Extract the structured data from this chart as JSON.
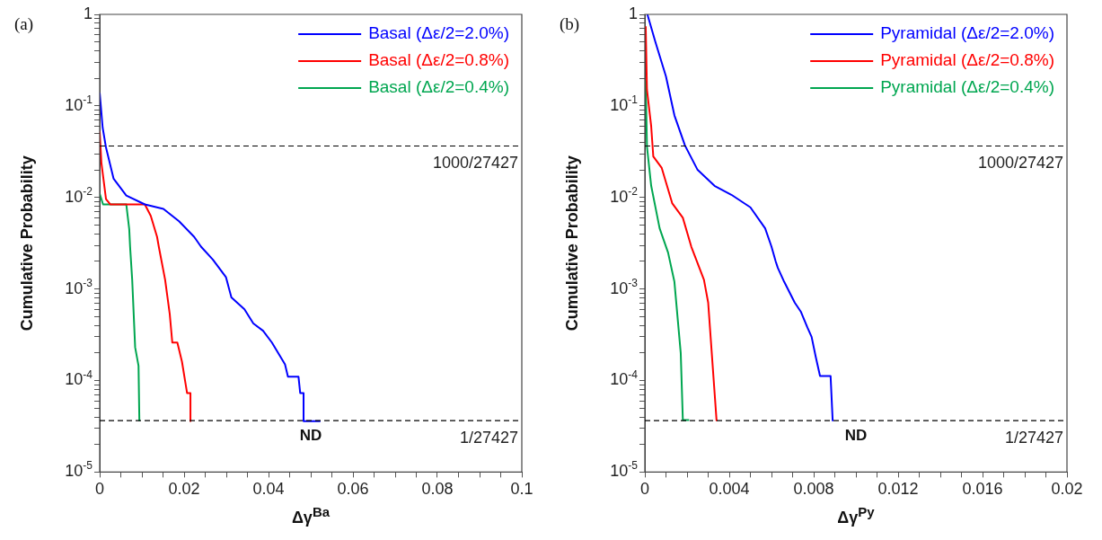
{
  "chart_data": [
    {
      "type": "line",
      "title": "(a)",
      "xlabel": "Δγ$^{Ba}$",
      "ylabel": "Cumulative Probability",
      "log": "y",
      "grid": false,
      "legend": "top right",
      "marker": "none",
      "line_style": "solid",
      "xlim": [
        0,
        0.1
      ],
      "ylim": [
        1e-05,
        1
      ],
      "xticks": [
        0,
        {
          "value": 0.005,
          "label": null
        },
        {
          "value": 0.01,
          "label": null
        },
        {
          "value": 0.015,
          "label": null
        },
        0.02,
        {
          "value": 0.025,
          "label": null
        },
        {
          "value": 0.03,
          "label": null
        },
        {
          "value": 0.035,
          "label": null
        },
        0.04,
        {
          "value": 0.045,
          "label": null
        },
        {
          "value": 0.05,
          "label": null
        },
        {
          "value": 0.055,
          "label": null
        },
        0.06,
        {
          "value": 0.065,
          "label": null
        },
        {
          "value": 0.07,
          "label": null
        },
        {
          "value": 0.075,
          "label": null
        },
        0.08,
        {
          "value": 0.085,
          "label": null
        },
        {
          "value": 0.09,
          "label": null
        },
        {
          "value": 0.095,
          "label": null
        },
        0.1
      ],
      "yticks": [
        {
          "value": 1e-05,
          "label": "10$^{-5}$"
        },
        {
          "value": 2e-05,
          "label": null
        },
        {
          "value": 3e-05,
          "label": null
        },
        {
          "value": 4e-05,
          "label": null
        },
        {
          "value": 5e-05,
          "label": null
        },
        {
          "value": 6e-05,
          "label": null
        },
        {
          "value": 7e-05,
          "label": null
        },
        {
          "value": 8e-05,
          "label": null
        },
        {
          "value": 9e-05,
          "label": null
        },
        {
          "value": 0.0001,
          "label": "10$^{-4}$"
        },
        {
          "value": 0.0002,
          "label": null
        },
        {
          "value": 0.0003,
          "label": null
        },
        {
          "value": 0.0004,
          "label": null
        },
        {
          "value": 0.0005,
          "label": null
        },
        {
          "value": 0.0006,
          "label": null
        },
        {
          "value": 0.0007,
          "label": null
        },
        {
          "value": 0.0008,
          "label": null
        },
        {
          "value": 0.0009,
          "label": null
        },
        {
          "value": 0.001,
          "label": "10$^{-3}$"
        },
        {
          "value": 0.002,
          "label": null
        },
        {
          "value": 0.003,
          "label": null
        },
        {
          "value": 0.004,
          "label": null
        },
        {
          "value": 0.005,
          "label": null
        },
        {
          "value": 0.006,
          "label": null
        },
        {
          "value": 0.007,
          "label": null
        },
        {
          "value": 0.008,
          "label": null
        },
        {
          "value": 0.009,
          "label": null
        },
        {
          "value": 0.01,
          "label": "10$^{-2}$"
        },
        {
          "value": 0.02,
          "label": null
        },
        {
          "value": 0.03,
          "label": null
        },
        {
          "value": 0.04,
          "label": null
        },
        {
          "value": 0.05,
          "label": null
        },
        {
          "value": 0.06,
          "label": null
        },
        {
          "value": 0.07,
          "label": null
        },
        {
          "value": 0.08,
          "label": null
        },
        {
          "value": 0.09,
          "label": null
        },
        {
          "value": 0.1,
          "label": "10$^{-1}$"
        },
        {
          "value": 0.2,
          "label": null
        },
        {
          "value": 0.3,
          "label": null
        },
        {
          "value": 0.4,
          "label": null
        },
        {
          "value": 0.5,
          "label": null
        },
        {
          "value": 0.6,
          "label": null
        },
        {
          "value": 0.7,
          "label": null
        },
        {
          "value": 0.8,
          "label": null
        },
        {
          "value": 0.9,
          "label": null
        },
        1
      ],
      "ref_lines": [
        {
          "axis": "y",
          "value": 0.036460422,
          "color": "#000000",
          "line_style": "dashed"
        },
        {
          "axis": "y",
          "value": 3.6460422e-05,
          "color": "#000000",
          "line_style": "dashed"
        }
      ],
      "annotations": [
        "1000/27427",
        "1/27427",
        "ND"
      ],
      "series": [
        {
          "name": "Basal (Δε/2=2.0%)",
          "color": "#0000ff",
          "x": [
            0,
            0.0007,
            0.0015,
            0.0033,
            0.0063,
            0.0107,
            0.0151,
            0.0188,
            0.0224,
            0.024,
            0.0268,
            0.0299,
            0.0312,
            0.0343,
            0.0364,
            0.0387,
            0.0408,
            0.0439,
            0.0446,
            0.0471,
            0.0475,
            0.0483,
            0.0483,
            0.0523
          ],
          "values": [
            0.14,
            0.058,
            0.035,
            0.016,
            0.0105,
            0.0084,
            0.0075,
            0.0055,
            0.0037,
            0.0029,
            0.0021,
            0.00135,
            0.00081,
            0.0006,
            0.00042,
            0.00035,
            0.00026,
            0.00015,
            0.00011,
            0.00011,
            7.3e-05,
            7.3e-05,
            3.6e-05,
            3.6e-05
          ]
        },
        {
          "name": "Basal (Δε/2=0.8%)",
          "color": "#ff0000",
          "x": [
            0,
            0.0004,
            0.0015,
            0.0025,
            0.0107,
            0.0121,
            0.0136,
            0.014,
            0.0155,
            0.0166,
            0.0172,
            0.0184,
            0.0195,
            0.0203,
            0.0207,
            0.0215,
            0.0215
          ],
          "values": [
            0.053,
            0.024,
            0.0096,
            0.0084,
            0.0084,
            0.0063,
            0.0037,
            0.0029,
            0.00126,
            0.00053,
            0.00026,
            0.00026,
            0.00016,
            9.5e-05,
            7.3e-05,
            7.3e-05,
            3.6e-05
          ]
        },
        {
          "name": "Basal (Δε/2=0.4%)",
          "color": "#00a650",
          "x": [
            0,
            0.0008,
            0.0063,
            0.007,
            0.0072,
            0.0077,
            0.0084,
            0.0092,
            0.0094
          ],
          "values": [
            0.011,
            0.0084,
            0.0084,
            0.0045,
            0.0029,
            0.00126,
            0.00023,
            0.000145,
            3.6e-05
          ]
        }
      ]
    },
    {
      "type": "line",
      "title": "(b)",
      "xlabel": "Δγ$^{Py}$",
      "ylabel": "Cumulative Probability",
      "log": "y",
      "grid": false,
      "legend": "top right",
      "marker": "none",
      "line_style": "solid",
      "xlim": [
        0,
        0.02
      ],
      "ylim": [
        1e-05,
        1
      ],
      "xticks": [
        0,
        {
          "value": 0.001,
          "label": null
        },
        {
          "value": 0.002,
          "label": null
        },
        {
          "value": 0.003,
          "label": null
        },
        0.004,
        {
          "value": 0.005,
          "label": null
        },
        {
          "value": 0.006,
          "label": null
        },
        {
          "value": 0.007,
          "label": null
        },
        0.008,
        {
          "value": 0.009,
          "label": null
        },
        {
          "value": 0.01,
          "label": null
        },
        {
          "value": 0.011,
          "label": null
        },
        0.012,
        {
          "value": 0.013,
          "label": null
        },
        {
          "value": 0.014,
          "label": null
        },
        {
          "value": 0.015,
          "label": null
        },
        0.016,
        {
          "value": 0.017,
          "label": null
        },
        {
          "value": 0.018,
          "label": null
        },
        {
          "value": 0.019,
          "label": null
        },
        0.02
      ],
      "yticks": [
        {
          "value": 1e-05,
          "label": "10$^{-5}$"
        },
        {
          "value": 2e-05,
          "label": null
        },
        {
          "value": 3e-05,
          "label": null
        },
        {
          "value": 4e-05,
          "label": null
        },
        {
          "value": 5e-05,
          "label": null
        },
        {
          "value": 6e-05,
          "label": null
        },
        {
          "value": 7e-05,
          "label": null
        },
        {
          "value": 8e-05,
          "label": null
        },
        {
          "value": 9e-05,
          "label": null
        },
        {
          "value": 0.0001,
          "label": "10$^{-4}$"
        },
        {
          "value": 0.0002,
          "label": null
        },
        {
          "value": 0.0003,
          "label": null
        },
        {
          "value": 0.0004,
          "label": null
        },
        {
          "value": 0.0005,
          "label": null
        },
        {
          "value": 0.0006,
          "label": null
        },
        {
          "value": 0.0007,
          "label": null
        },
        {
          "value": 0.0008,
          "label": null
        },
        {
          "value": 0.0009,
          "label": null
        },
        {
          "value": 0.001,
          "label": "10$^{-3}$"
        },
        {
          "value": 0.002,
          "label": null
        },
        {
          "value": 0.003,
          "label": null
        },
        {
          "value": 0.004,
          "label": null
        },
        {
          "value": 0.005,
          "label": null
        },
        {
          "value": 0.006,
          "label": null
        },
        {
          "value": 0.007,
          "label": null
        },
        {
          "value": 0.008,
          "label": null
        },
        {
          "value": 0.009,
          "label": null
        },
        {
          "value": 0.01,
          "label": "10$^{-2}$"
        },
        {
          "value": 0.02,
          "label": null
        },
        {
          "value": 0.03,
          "label": null
        },
        {
          "value": 0.04,
          "label": null
        },
        {
          "value": 0.05,
          "label": null
        },
        {
          "value": 0.06,
          "label": null
        },
        {
          "value": 0.07,
          "label": null
        },
        {
          "value": 0.08,
          "label": null
        },
        {
          "value": 0.09,
          "label": null
        },
        {
          "value": 0.1,
          "label": "10$^{-1}$"
        },
        {
          "value": 0.2,
          "label": null
        },
        {
          "value": 0.3,
          "label": null
        },
        {
          "value": 0.4,
          "label": null
        },
        {
          "value": 0.5,
          "label": null
        },
        {
          "value": 0.6,
          "label": null
        },
        {
          "value": 0.7,
          "label": null
        },
        {
          "value": 0.8,
          "label": null
        },
        {
          "value": 0.9,
          "label": null
        },
        1
      ],
      "ref_lines": [
        {
          "axis": "y",
          "value": 0.036460422,
          "color": "#000000",
          "line_style": "dashed"
        },
        {
          "axis": "y",
          "value": 3.6460422e-05,
          "color": "#000000",
          "line_style": "dashed"
        }
      ],
      "annotations": [
        "1000/27427",
        "1/27427",
        "ND"
      ],
      "series": [
        {
          "name": "Pyramidal (Δε/2=2.0%)",
          "color": "#0000ff",
          "x": [
            0.00012,
            0.0005,
            0.001,
            0.0014,
            0.0019,
            0.0025,
            0.0033,
            0.0041,
            0.005,
            0.0057,
            0.006,
            0.0062,
            0.0063,
            0.0066,
            0.0071,
            0.0074,
            0.0077,
            0.0079,
            0.0081,
            0.0083,
            0.0088,
            0.0089
          ],
          "values": [
            1,
            0.5,
            0.21,
            0.079,
            0.037,
            0.02,
            0.0134,
            0.0107,
            0.0078,
            0.0046,
            0.0029,
            0.002,
            0.0017,
            0.0012,
            0.00071,
            0.00056,
            0.00038,
            0.0003,
            0.00018,
            0.000112,
            0.000112,
            3.6e-05
          ]
        },
        {
          "name": "Pyramidal (Δε/2=0.8%)",
          "color": "#ff0000",
          "x": [
            4e-05,
            0.0001,
            0.0003,
            0.0004,
            0.0008,
            0.0013,
            0.0018,
            0.0022,
            0.0028,
            0.003,
            0.0034
          ],
          "values": [
            0.74,
            0.15,
            0.06,
            0.028,
            0.021,
            0.0086,
            0.006,
            0.0029,
            0.00126,
            0.00071,
            3.6e-05
          ]
        },
        {
          "name": "Pyramidal (Δε/2=0.4%)",
          "color": "#00a650",
          "x": [
            4e-05,
            0.0001,
            0.0003,
            0.0007,
            0.0011,
            0.0014,
            0.0017,
            0.0018,
            0.0021
          ],
          "values": [
            0.19,
            0.036,
            0.0134,
            0.0046,
            0.0025,
            0.0012,
            0.0002,
            3.7e-05,
            3.7e-05
          ]
        }
      ]
    }
  ]
}
